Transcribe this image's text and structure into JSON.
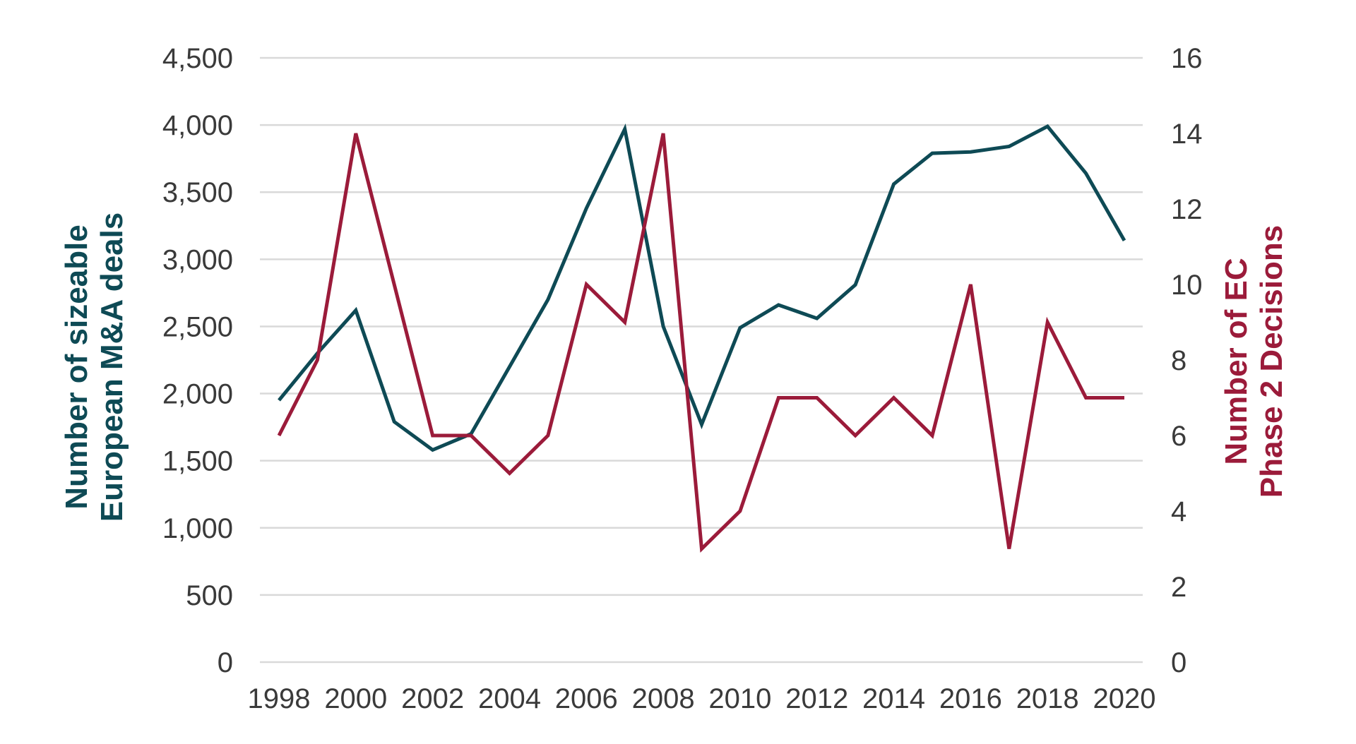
{
  "chart_data": {
    "type": "line",
    "x": [
      1998,
      1999,
      2000,
      2001,
      2002,
      2003,
      2004,
      2005,
      2006,
      2007,
      2008,
      2009,
      2010,
      2011,
      2012,
      2013,
      2014,
      2015,
      2016,
      2017,
      2018,
      2019,
      2020
    ],
    "x_tick_labels": [
      "1998",
      "2000",
      "2002",
      "2004",
      "2006",
      "2008",
      "2010",
      "2012",
      "2014",
      "2016",
      "2018",
      "2020"
    ],
    "y_left": {
      "label_lines": [
        "Number of sizeable",
        "European M&A deals"
      ],
      "range": [
        0,
        4500
      ],
      "tick_labels": [
        "0",
        "500",
        "1,000",
        "1,500",
        "2,000",
        "2,500",
        "3,000",
        "3,500",
        "4,000",
        "4,500"
      ],
      "ticks": [
        0,
        500,
        1000,
        1500,
        2000,
        2500,
        3000,
        3500,
        4000,
        4500
      ],
      "color": "#0e4a55"
    },
    "y_right": {
      "label_lines": [
        "Number of EC",
        "Phase 2 Decisions"
      ],
      "range": [
        0,
        16
      ],
      "tick_labels": [
        "0",
        "2",
        "4",
        "6",
        "8",
        "10",
        "12",
        "14",
        "16"
      ],
      "ticks": [
        0,
        2,
        4,
        6,
        8,
        10,
        12,
        14,
        16
      ],
      "color": "#9b1b3a"
    },
    "series": [
      {
        "axis": "left",
        "color": "#0e4a55",
        "values": [
          1950,
          2300,
          2620,
          1790,
          1580,
          1700,
          2200,
          2700,
          3380,
          3970,
          2500,
          1770,
          2490,
          2660,
          2560,
          2810,
          3560,
          3790,
          3800,
          3840,
          3990,
          3640,
          3140
        ]
      },
      {
        "axis": "right",
        "color": "#9b1b3a",
        "values": [
          6,
          8,
          14,
          10,
          6,
          6,
          5,
          6,
          10,
          9,
          14,
          3,
          4,
          7,
          7,
          6,
          7,
          6,
          10,
          3,
          9,
          7,
          7
        ]
      }
    ],
    "grid": true,
    "legend": "none"
  }
}
